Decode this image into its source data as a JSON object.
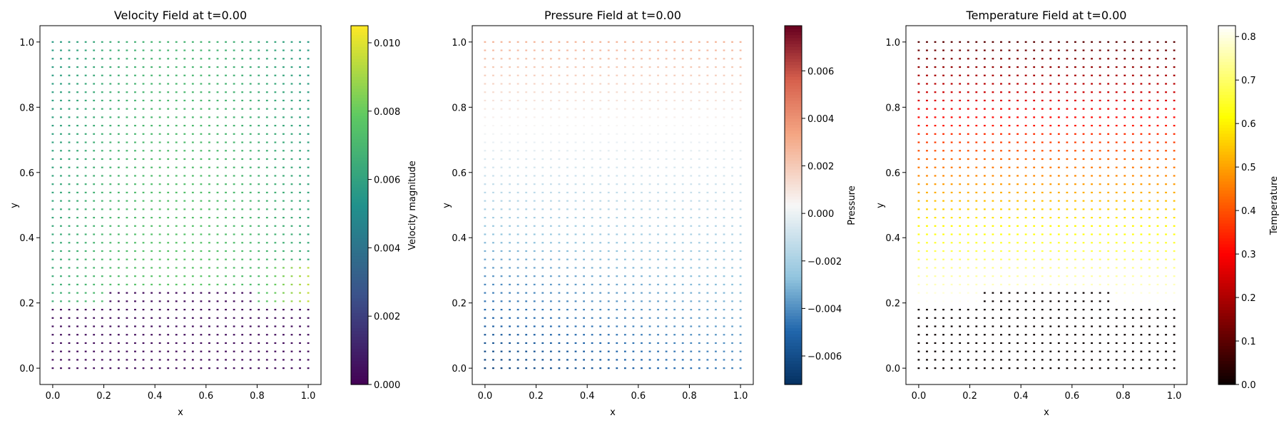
{
  "chart_data": [
    {
      "type": "quiver",
      "title": "Velocity Field at t=0.00",
      "xlabel": "x",
      "ylabel": "y",
      "xlim": [
        -0.05,
        1.05
      ],
      "ylim": [
        -0.05,
        1.05
      ],
      "xticks": [
        "0.0",
        "0.2",
        "0.4",
        "0.6",
        "0.8",
        "1.0"
      ],
      "yticks": [
        "0.0",
        "0.2",
        "0.4",
        "0.6",
        "0.8",
        "1.0"
      ],
      "grid": {
        "nx": 32,
        "ny": 40,
        "x_range": [
          0,
          1
        ],
        "y_range": [
          0,
          1
        ]
      },
      "colormap": "viridis",
      "colorbar": {
        "label": "Velocity magnitude",
        "range": [
          0,
          0.0105
        ],
        "ticks": [
          "0.000",
          "0.002",
          "0.004",
          "0.006",
          "0.008",
          "0.010"
        ],
        "tick_values": [
          0,
          0.002,
          0.004,
          0.006,
          0.008,
          0.01
        ]
      },
      "field_description": "Magnitude near 0 for y<0.2 (region below 0.23 between x=0.2 and x=0.8); increases upward to about 0.006 near y=1, highest (~0.0105) at the right edge around y=0.23"
    },
    {
      "type": "quiver",
      "title": "Pressure Field at t=0.00",
      "xlabel": "x",
      "ylabel": "y",
      "xlim": [
        -0.05,
        1.05
      ],
      "ylim": [
        -0.05,
        1.05
      ],
      "xticks": [
        "0.0",
        "0.2",
        "0.4",
        "0.6",
        "0.8",
        "1.0"
      ],
      "yticks": [
        "0.0",
        "0.2",
        "0.4",
        "0.6",
        "0.8",
        "1.0"
      ],
      "grid": {
        "nx": 32,
        "ny": 40,
        "x_range": [
          0,
          1
        ],
        "y_range": [
          0,
          1
        ]
      },
      "colormap": "RdBu_r",
      "colorbar": {
        "label": "Pressure",
        "range": [
          -0.0072,
          0.0079
        ],
        "ticks": [
          "−0.006",
          "−0.004",
          "−0.002",
          "0.000",
          "0.002",
          "0.004",
          "0.006"
        ],
        "tick_values": [
          -0.006,
          -0.004,
          -0.002,
          0,
          0.002,
          0.004,
          0.006
        ]
      },
      "field_description": "Pressure about 0.006 at top (y=1) decreasing to about -0.006 at bottom-left; near zero around y=0.7, slightly weaker toward x=1 at the bottom"
    },
    {
      "type": "quiver",
      "title": "Temperature Field at t=0.00",
      "xlabel": "x",
      "ylabel": "y",
      "xlim": [
        -0.05,
        1.05
      ],
      "ylim": [
        -0.05,
        1.05
      ],
      "xticks": [
        "0.0",
        "0.2",
        "0.4",
        "0.6",
        "0.8",
        "1.0"
      ],
      "yticks": [
        "0.0",
        "0.2",
        "0.4",
        "0.6",
        "0.8",
        "1.0"
      ],
      "grid": {
        "nx": 32,
        "ny": 40,
        "x_range": [
          0,
          1
        ],
        "y_range": [
          0,
          1
        ]
      },
      "colormap": "hot",
      "colorbar": {
        "label": "Temperature",
        "range": [
          0,
          0.825
        ],
        "ticks": [
          "0.0",
          "0.1",
          "0.2",
          "0.3",
          "0.4",
          "0.5",
          "0.6",
          "0.7",
          "0.8"
        ],
        "tick_values": [
          0,
          0.1,
          0.2,
          0.3,
          0.4,
          0.5,
          0.6,
          0.7,
          0.8
        ]
      },
      "field_description": "Temperature 0 in the bottom block (y<0.2, and y<0.23 between x=0.23 and x=0.77); about 0.8 just above it, decreasing to about 0.1 at y=1"
    }
  ]
}
